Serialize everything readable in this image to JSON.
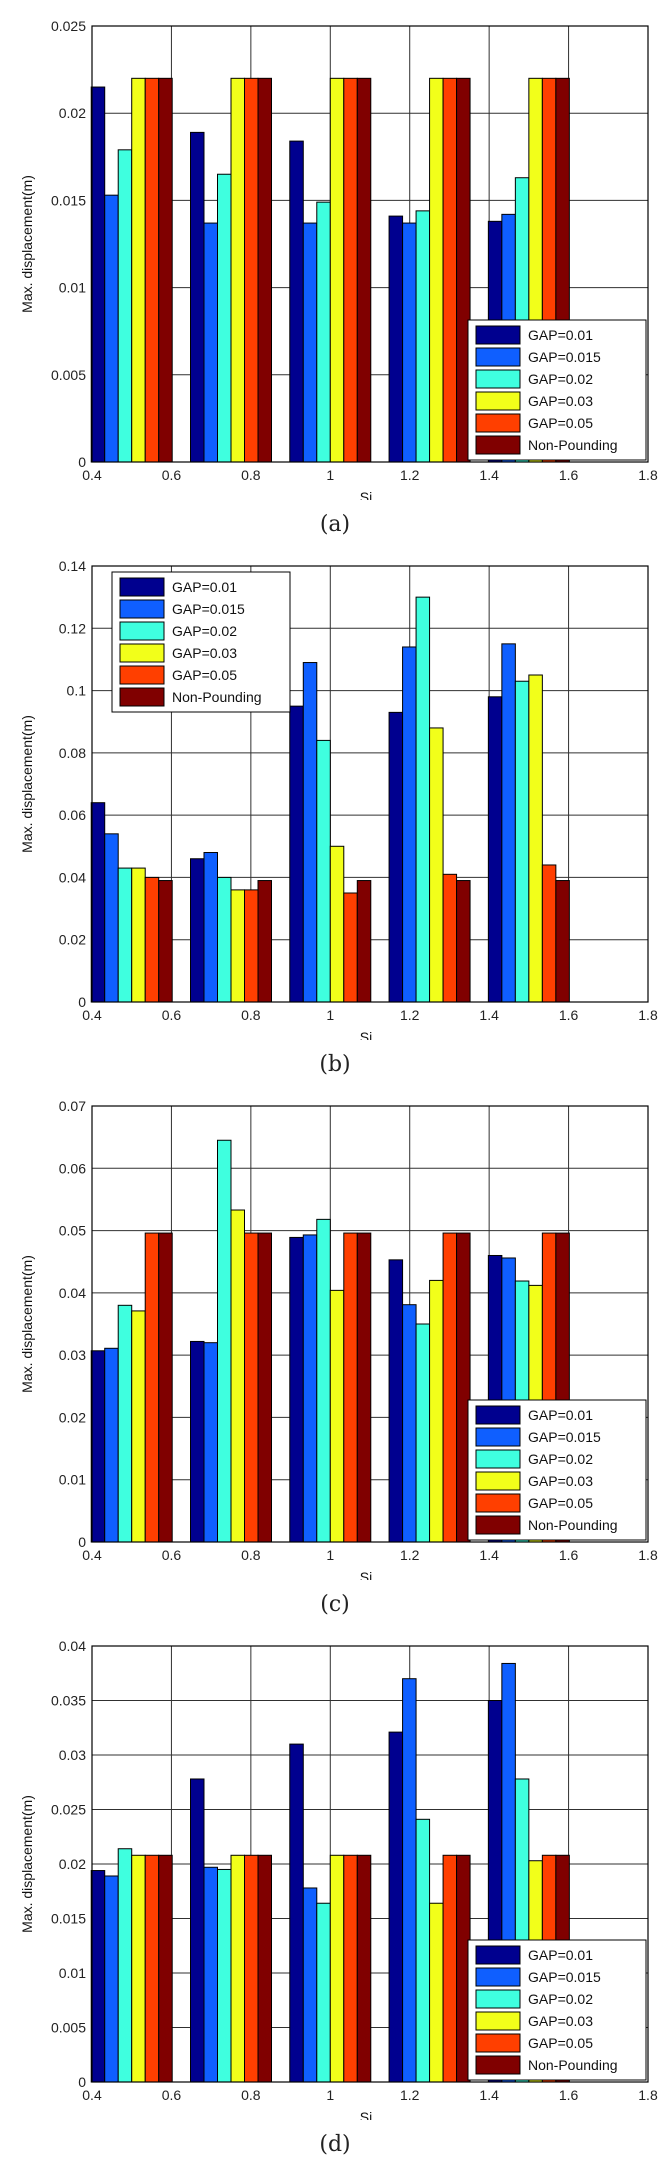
{
  "colors": {
    "GAP=0.01": "#00008f",
    "GAP=0.015": "#0f5fff",
    "GAP=0.02": "#3fffdf",
    "GAP=0.03": "#f2ff1a",
    "GAP=0.05": "#ff3f00",
    "Non-Pounding": "#800000"
  },
  "chart_data": [
    {
      "caption": "(a)",
      "type": "bar",
      "xlabel": "Si_H",
      "ylabel": "Max. displacement(m)",
      "xlim": [
        0.4,
        1.8
      ],
      "ylim": [
        0,
        0.025
      ],
      "xticks": [
        "0.4",
        "0.6",
        "0.8",
        "1",
        "1.2",
        "1.4",
        "1.6",
        "1.8"
      ],
      "yticks": [
        "0",
        "0.005",
        "0.01",
        "0.015",
        "0.02",
        "0.025"
      ],
      "categories": [
        0.5,
        0.75,
        1.0,
        1.25,
        1.5
      ],
      "legend_position": "bottom-right",
      "grid": true,
      "series": [
        {
          "name": "GAP=0.01",
          "values": [
            0.0215,
            0.0189,
            0.0184,
            0.0141,
            0.0138
          ]
        },
        {
          "name": "GAP=0.015",
          "values": [
            0.0153,
            0.0137,
            0.0137,
            0.0137,
            0.0142
          ]
        },
        {
          "name": "GAP=0.02",
          "values": [
            0.0179,
            0.0165,
            0.0149,
            0.0144,
            0.0163
          ]
        },
        {
          "name": "GAP=0.03",
          "values": [
            0.022,
            0.022,
            0.022,
            0.022,
            0.022
          ]
        },
        {
          "name": "GAP=0.05",
          "values": [
            0.022,
            0.022,
            0.022,
            0.022,
            0.022
          ]
        },
        {
          "name": "Non-Pounding",
          "values": [
            0.022,
            0.022,
            0.022,
            0.022,
            0.022
          ]
        }
      ]
    },
    {
      "caption": "(b)",
      "type": "bar",
      "xlabel": "Si_H",
      "ylabel": "Max. displacement(m)",
      "xlim": [
        0.4,
        1.8
      ],
      "ylim": [
        0,
        0.14
      ],
      "xticks": [
        "0.4",
        "0.6",
        "0.8",
        "1",
        "1.2",
        "1.4",
        "1.6",
        "1.8"
      ],
      "yticks": [
        "0",
        "0.02",
        "0.04",
        "0.06",
        "0.08",
        "0.1",
        "0.12",
        "0.14"
      ],
      "categories": [
        0.5,
        0.75,
        1.0,
        1.25,
        1.5
      ],
      "legend_position": "top-left",
      "grid": true,
      "series": [
        {
          "name": "GAP=0.01",
          "values": [
            0.064,
            0.046,
            0.095,
            0.093,
            0.098
          ]
        },
        {
          "name": "GAP=0.015",
          "values": [
            0.054,
            0.048,
            0.109,
            0.114,
            0.115
          ]
        },
        {
          "name": "GAP=0.02",
          "values": [
            0.043,
            0.04,
            0.084,
            0.13,
            0.103
          ]
        },
        {
          "name": "GAP=0.03",
          "values": [
            0.043,
            0.036,
            0.05,
            0.088,
            0.105
          ]
        },
        {
          "name": "GAP=0.05",
          "values": [
            0.04,
            0.036,
            0.035,
            0.041,
            0.044
          ]
        },
        {
          "name": "Non-Pounding",
          "values": [
            0.039,
            0.039,
            0.039,
            0.039,
            0.039
          ]
        }
      ]
    },
    {
      "caption": "(c)",
      "type": "bar",
      "xlabel": "Si_H",
      "ylabel": "Max. displacement(m)",
      "xlim": [
        0.4,
        1.8
      ],
      "ylim": [
        0,
        0.07
      ],
      "xticks": [
        "0.4",
        "0.6",
        "0.8",
        "1",
        "1.2",
        "1.4",
        "1.6",
        "1.8"
      ],
      "yticks": [
        "0",
        "0.01",
        "0.02",
        "0.03",
        "0.04",
        "0.05",
        "0.06",
        "0.07"
      ],
      "categories": [
        0.5,
        0.75,
        1.0,
        1.25,
        1.5
      ],
      "legend_position": "bottom-right",
      "grid": true,
      "series": [
        {
          "name": "GAP=0.01",
          "values": [
            0.0307,
            0.0322,
            0.0489,
            0.0453,
            0.046
          ]
        },
        {
          "name": "GAP=0.015",
          "values": [
            0.0311,
            0.032,
            0.0493,
            0.0381,
            0.0456
          ]
        },
        {
          "name": "GAP=0.02",
          "values": [
            0.038,
            0.0645,
            0.0518,
            0.035,
            0.0419
          ]
        },
        {
          "name": "GAP=0.03",
          "values": [
            0.0371,
            0.0533,
            0.0404,
            0.042,
            0.0412
          ]
        },
        {
          "name": "GAP=0.05",
          "values": [
            0.0496,
            0.0496,
            0.0496,
            0.0496,
            0.0496
          ]
        },
        {
          "name": "Non-Pounding",
          "values": [
            0.0496,
            0.0496,
            0.0496,
            0.0496,
            0.0496
          ]
        }
      ]
    },
    {
      "caption": "(d)",
      "type": "bar",
      "xlabel": "Si_H",
      "ylabel": "Max. displacement(m)",
      "xlim": [
        0.4,
        1.8
      ],
      "ylim": [
        0,
        0.04
      ],
      "xticks": [
        "0.4",
        "0.6",
        "0.8",
        "1",
        "1.2",
        "1.4",
        "1.6",
        "1.8"
      ],
      "yticks": [
        "0",
        "0.005",
        "0.01",
        "0.015",
        "0.02",
        "0.025",
        "0.03",
        "0.035",
        "0.04"
      ],
      "categories": [
        0.5,
        0.75,
        1.0,
        1.25,
        1.5
      ],
      "legend_position": "bottom-right",
      "grid": true,
      "series": [
        {
          "name": "GAP=0.01",
          "values": [
            0.0194,
            0.0278,
            0.031,
            0.0321,
            0.035
          ]
        },
        {
          "name": "GAP=0.015",
          "values": [
            0.0189,
            0.0197,
            0.0178,
            0.037,
            0.0384
          ]
        },
        {
          "name": "GAP=0.02",
          "values": [
            0.0214,
            0.0195,
            0.0164,
            0.0241,
            0.0278
          ]
        },
        {
          "name": "GAP=0.03",
          "values": [
            0.0208,
            0.0208,
            0.0208,
            0.0164,
            0.0203
          ]
        },
        {
          "name": "GAP=0.05",
          "values": [
            0.0208,
            0.0208,
            0.0208,
            0.0208,
            0.0208
          ]
        },
        {
          "name": "Non-Pounding",
          "values": [
            0.0208,
            0.0208,
            0.0208,
            0.0208,
            0.0208
          ]
        }
      ]
    }
  ]
}
